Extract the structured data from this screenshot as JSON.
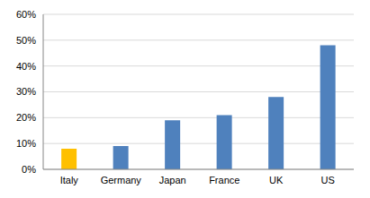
{
  "chart_data": {
    "type": "bar",
    "categories": [
      "Italy",
      "Germany",
      "Japan",
      "France",
      "UK",
      "US"
    ],
    "values": [
      8,
      9,
      19,
      21,
      28,
      48
    ],
    "colors": [
      "#ffc000",
      "#4f81bd",
      "#4f81bd",
      "#4f81bd",
      "#4f81bd",
      "#4f81bd"
    ],
    "ylim": [
      0,
      60
    ],
    "yticks": [
      {
        "value": 0,
        "label": "0%"
      },
      {
        "value": 10,
        "label": "10%"
      },
      {
        "value": 20,
        "label": "20%"
      },
      {
        "value": 30,
        "label": "30%"
      },
      {
        "value": 40,
        "label": "40%"
      },
      {
        "value": 50,
        "label": "50%"
      },
      {
        "value": 60,
        "label": "60%"
      }
    ],
    "grid": true
  }
}
